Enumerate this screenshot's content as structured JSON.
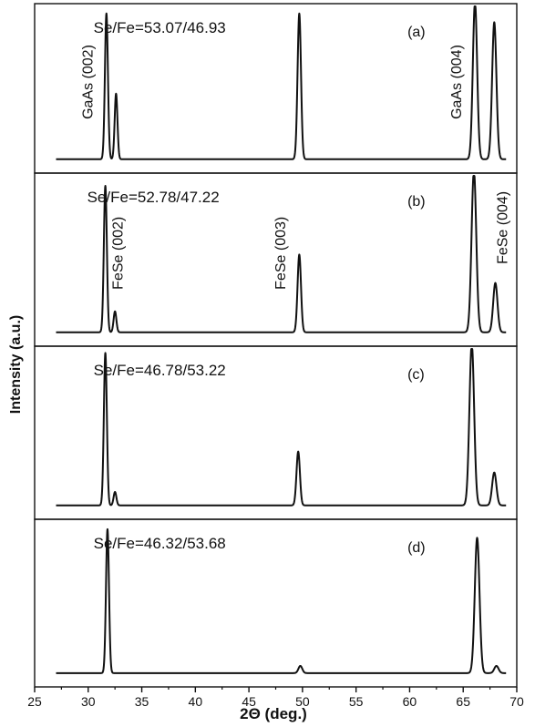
{
  "chart_data": {
    "type": "line",
    "xlabel": "2Θ (deg.)",
    "ylabel": "Intensity (a.u.)",
    "xlim": [
      25,
      70
    ],
    "x_ticks": [
      "25",
      "30",
      "35",
      "40",
      "45",
      "50",
      "55",
      "60",
      "65",
      "70"
    ],
    "line_color": "#111111",
    "panels": [
      {
        "tag": "(a)",
        "composition": "Se/Fe=53.07/46.93",
        "baseline": 0.02,
        "peaks": [
          {
            "x": 31.7,
            "h": 1.0,
            "w": 0.14
          },
          {
            "x": 32.6,
            "h": 0.45,
            "w": 0.13
          },
          {
            "x": 49.7,
            "h": 1.0,
            "w": 0.16
          },
          {
            "x": 66.1,
            "h": 1.08,
            "w": 0.2
          },
          {
            "x": 67.9,
            "h": 0.94,
            "w": 0.2
          }
        ],
        "annotations": [
          {
            "text": "GaAs (002)",
            "x": 30.4,
            "y": 0.55
          },
          {
            "text": "GaAs (004)",
            "x": 64.8,
            "y": 0.55
          }
        ]
      },
      {
        "tag": "(b)",
        "composition": "Se/Fe=52.78/47.22",
        "baseline": 0.02,
        "peaks": [
          {
            "x": 31.6,
            "h": 0.98,
            "w": 0.14
          },
          {
            "x": 32.5,
            "h": 0.14,
            "w": 0.13
          },
          {
            "x": 49.7,
            "h": 0.52,
            "w": 0.16
          },
          {
            "x": 66.0,
            "h": 1.08,
            "w": 0.22
          },
          {
            "x": 68.0,
            "h": 0.33,
            "w": 0.2
          }
        ],
        "annotations": [
          {
            "text": "FeSe (002)",
            "x": 33.2,
            "y": 0.55
          },
          {
            "text": "FeSe (003)",
            "x": 48.4,
            "y": 0.55
          },
          {
            "text": "FeSe (004)",
            "x": 69.1,
            "y": 0.72
          }
        ]
      },
      {
        "tag": "(c)",
        "composition": "Se/Fe=46.78/53.22",
        "baseline": 0.02,
        "peaks": [
          {
            "x": 31.6,
            "h": 1.02,
            "w": 0.14
          },
          {
            "x": 32.5,
            "h": 0.09,
            "w": 0.13
          },
          {
            "x": 49.6,
            "h": 0.36,
            "w": 0.16
          },
          {
            "x": 65.8,
            "h": 1.08,
            "w": 0.22
          },
          {
            "x": 67.9,
            "h": 0.22,
            "w": 0.2
          }
        ],
        "annotations": []
      },
      {
        "tag": "(d)",
        "composition": "Se/Fe=46.32/53.68",
        "baseline": 0.02,
        "peaks": [
          {
            "x": 31.8,
            "h": 1.0,
            "w": 0.14
          },
          {
            "x": 49.8,
            "h": 0.05,
            "w": 0.18
          },
          {
            "x": 66.3,
            "h": 0.94,
            "w": 0.22
          },
          {
            "x": 68.1,
            "h": 0.05,
            "w": 0.2
          }
        ],
        "annotations": []
      }
    ]
  }
}
